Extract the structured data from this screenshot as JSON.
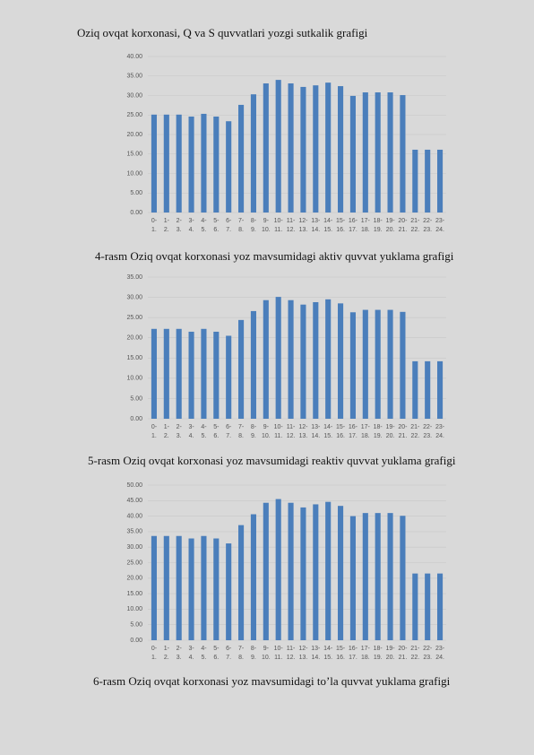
{
  "heading": "Oziq ovqat korxonasi, Q va S quvvatlari yozgi sutkalik grafigi",
  "chart_data": [
    {
      "type": "bar",
      "caption": "4-rasm Oziq ovqat korxonasi yoz mavsumidagi aktiv quvvat yuklama grafigi",
      "categories": [
        "0- 1.",
        "1- 2.",
        "2- 3.",
        "3- 4.",
        "4- 5.",
        "5- 6.",
        "6- 7.",
        "7- 8.",
        "8- 9.",
        "9- 10.",
        "10- 11.",
        "11- 12.",
        "12- 13.",
        "13- 14.",
        "14- 15.",
        "15- 16.",
        "16- 17.",
        "17- 18.",
        "18- 19.",
        "19- 20.",
        "20- 21.",
        "21- 22.",
        "22- 23.",
        "23- 24."
      ],
      "values": [
        25.1,
        25.1,
        25.1,
        24.6,
        25.3,
        24.6,
        23.4,
        27.6,
        30.3,
        33.1,
        34.0,
        33.1,
        32.2,
        32.6,
        33.3,
        32.4,
        29.9,
        30.8,
        30.8,
        30.8,
        30.1,
        16.1,
        16.1,
        16.1
      ],
      "color": "#4a7ebb",
      "grid": true,
      "ylim": [
        0,
        40
      ],
      "yticks": [
        {
          "value": 0,
          "label": "0.00"
        },
        {
          "value": 5,
          "label": "5.00"
        },
        {
          "value": 10,
          "label": "10.00"
        },
        {
          "value": 15,
          "label": "15.00"
        },
        {
          "value": 20,
          "label": "20.00"
        },
        {
          "value": 25,
          "label": "25.00"
        },
        {
          "value": 30,
          "label": "30.00"
        },
        {
          "value": 35,
          "label": "35.00"
        },
        {
          "value": 40,
          "label": "40.00"
        }
      ]
    },
    {
      "type": "bar",
      "caption": "5-rasm Oziq ovqat korxonasi yoz mavsumidagi reaktiv quvvat yuklama grafigi",
      "categories": [
        "0- 1.",
        "1- 2.",
        "2- 3.",
        "3- 4.",
        "4- 5.",
        "5- 6.",
        "6- 7.",
        "7- 8.",
        "8- 9.",
        "9- 10.",
        "10- 11.",
        "11- 12.",
        "12- 13.",
        "13- 14.",
        "14- 15.",
        "15- 16.",
        "16- 17.",
        "17- 18.",
        "18- 19.",
        "19- 20.",
        "20- 21.",
        "21- 22.",
        "22- 23.",
        "23- 24."
      ],
      "values": [
        22.2,
        22.2,
        22.2,
        21.5,
        22.2,
        21.5,
        20.5,
        24.4,
        26.6,
        29.3,
        30.1,
        29.3,
        28.2,
        28.8,
        29.5,
        28.5,
        26.3,
        26.9,
        26.9,
        26.9,
        26.4,
        14.2,
        14.2,
        14.2
      ],
      "color": "#4a7ebb",
      "grid": true,
      "ylim": [
        0,
        35
      ],
      "yticks": [
        {
          "value": 0,
          "label": "0.00"
        },
        {
          "value": 5,
          "label": "5.00"
        },
        {
          "value": 10,
          "label": "10.00"
        },
        {
          "value": 15,
          "label": "15.00"
        },
        {
          "value": 20,
          "label": "20.00"
        },
        {
          "value": 25,
          "label": "25.00"
        },
        {
          "value": 30,
          "label": "30.00"
        },
        {
          "value": 35,
          "label": "35.00"
        }
      ]
    },
    {
      "type": "bar",
      "caption": "6-rasm Oziq ovqat korxonasi yoz mavsumidagi to’la quvvat yuklama grafigi",
      "categories": [
        "0- 1.",
        "1- 2.",
        "2- 3.",
        "3- 4.",
        "4- 5.",
        "5- 6.",
        "6- 7.",
        "7- 8.",
        "8- 9.",
        "9- 10.",
        "10- 11.",
        "11- 12.",
        "12- 13.",
        "13- 14.",
        "14- 15.",
        "15- 16.",
        "16- 17.",
        "17- 18.",
        "18- 19.",
        "19- 20.",
        "20- 21.",
        "21- 22.",
        "22- 23.",
        "23- 24."
      ],
      "values": [
        33.6,
        33.6,
        33.6,
        32.8,
        33.6,
        32.8,
        31.2,
        37.1,
        40.6,
        44.3,
        45.5,
        44.3,
        42.8,
        43.8,
        44.6,
        43.3,
        40.0,
        41.0,
        41.0,
        41.0,
        40.1,
        21.5,
        21.5,
        21.5
      ],
      "color": "#4a7ebb",
      "grid": true,
      "ylim": [
        0,
        50
      ],
      "yticks": [
        {
          "value": 0,
          "label": "0.00"
        },
        {
          "value": 5,
          "label": "5.00"
        },
        {
          "value": 10,
          "label": "10.00"
        },
        {
          "value": 15,
          "label": "15.00"
        },
        {
          "value": 20,
          "label": "20.00"
        },
        {
          "value": 25,
          "label": "25.00"
        },
        {
          "value": 30,
          "label": "30.00"
        },
        {
          "value": 35,
          "label": "35.00"
        },
        {
          "value": 40,
          "label": "40.00"
        },
        {
          "value": 45,
          "label": "45.00"
        },
        {
          "value": 50,
          "label": "50.00"
        }
      ]
    }
  ]
}
